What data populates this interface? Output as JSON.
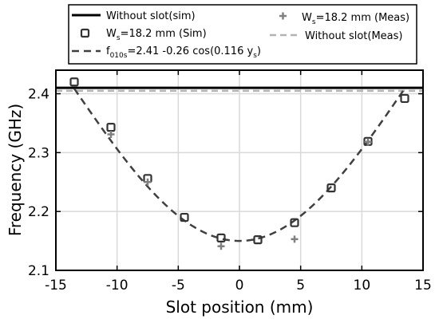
{
  "chart_data": {
    "type": "scatter",
    "xlabel": "Slot position (mm)",
    "ylabel": "Frequency (GHz)",
    "xlim": [
      -15,
      15
    ],
    "ylim": [
      2.1,
      2.44
    ],
    "xticks": [
      "-15",
      "-10",
      "-5",
      "0",
      "5",
      "10",
      "15"
    ],
    "yticks": [
      "2.1",
      "2.2",
      "2.3",
      "2.4"
    ],
    "grid": true,
    "legend_position": "top (above plot)",
    "series": [
      {
        "name": "Without slot(sim)",
        "kind": "hline",
        "y": 2.41,
        "color": "#000000"
      },
      {
        "name": "Ws=18.2 mm (Sim)",
        "name_parts": [
          "W",
          "s",
          "=18.2 mm (Sim)"
        ],
        "kind": "markers-square",
        "x": [
          -13.5,
          -10.5,
          -7.5,
          -4.5,
          -1.5,
          1.5,
          4.5,
          7.5,
          10.5,
          13.5
        ],
        "y": [
          2.42,
          2.343,
          2.256,
          2.19,
          2.155,
          2.152,
          2.181,
          2.24,
          2.319,
          2.392
        ],
        "color": "#333333"
      },
      {
        "name": "f010s=2.41 -0.26 cos(0.116 ys)",
        "name_parts": [
          "f",
          "010s",
          "=2.41 -0.26 cos(0.116 y",
          "s",
          ")"
        ],
        "kind": "fit-dashed",
        "a": 2.41,
        "b": -0.26,
        "k": 0.116,
        "x_range": [
          -13.5,
          13.5
        ],
        "color": "#404040"
      },
      {
        "name": "Ws=18.2 mm (Meas)",
        "name_parts": [
          "W",
          "s",
          "=18.2 mm (Meas)"
        ],
        "kind": "markers-plus",
        "x": [
          -10.5,
          -7.5,
          -1.5,
          4.5,
          10.5
        ],
        "y": [
          2.331,
          2.25,
          2.141,
          2.153,
          2.318
        ],
        "color": "#808080"
      },
      {
        "name": "Without slot(Meas)",
        "kind": "hline-dashed",
        "y": 2.405,
        "color": "#b3b3b3"
      }
    ]
  }
}
